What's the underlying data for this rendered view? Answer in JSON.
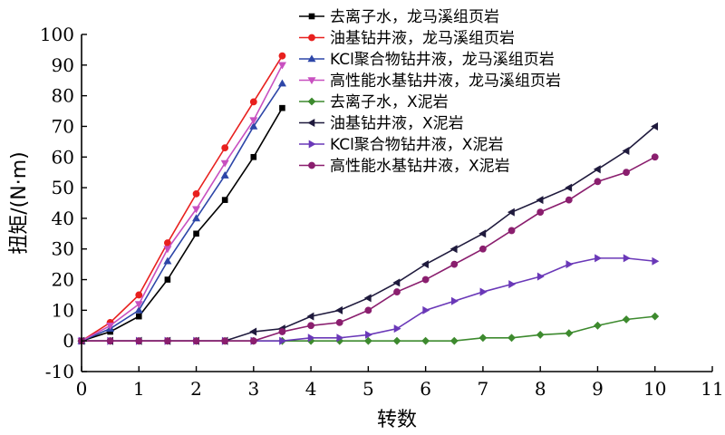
{
  "chart_data": {
    "type": "line",
    "title": "",
    "xlabel": "转数",
    "ylabel": "扭矩/(N·m)",
    "xlim": [
      0,
      11
    ],
    "ylim": [
      -10,
      100
    ],
    "xticks": [
      0,
      1,
      2,
      3,
      4,
      5,
      6,
      7,
      8,
      9,
      10,
      11
    ],
    "yticks": [
      -10,
      0,
      10,
      20,
      30,
      40,
      50,
      60,
      70,
      80,
      90,
      100
    ],
    "grid": false,
    "legend_position": "top-right",
    "series": [
      {
        "name": "去离子水，龙马溪组页岩",
        "color": "#000000",
        "marker": "square",
        "x": [
          0,
          0.5,
          1,
          1.5,
          2,
          2.5,
          3,
          3.5
        ],
        "y": [
          0,
          3,
          8,
          20,
          35,
          46,
          60,
          76
        ]
      },
      {
        "name": "油基钻井液，龙马溪组页岩",
        "color": "#e8201e",
        "marker": "circle",
        "x": [
          0,
          0.5,
          1,
          1.5,
          2,
          2.5,
          3,
          3.5
        ],
        "y": [
          0,
          6,
          15,
          32,
          48,
          63,
          78,
          93
        ]
      },
      {
        "name": "KCl聚合物钻井液，龙马溪组页岩",
        "color": "#2d46a8",
        "marker": "triangle-up",
        "x": [
          0,
          0.5,
          1,
          1.5,
          2,
          2.5,
          3,
          3.5
        ],
        "y": [
          0,
          4,
          10,
          26,
          40,
          54,
          70,
          84
        ]
      },
      {
        "name": "高性能水基钻井液，龙马溪组页岩",
        "color": "#c850c0",
        "marker": "triangle-down",
        "x": [
          0,
          0.5,
          1,
          1.5,
          2,
          2.5,
          3,
          3.5
        ],
        "y": [
          0,
          5,
          12,
          30,
          43,
          58,
          72,
          90
        ]
      },
      {
        "name": "去离子水，X泥岩",
        "color": "#3d8a2e",
        "marker": "diamond",
        "x": [
          0,
          0.5,
          1,
          1.5,
          2,
          2.5,
          3,
          3.5,
          4,
          4.5,
          5,
          5.5,
          6,
          6.5,
          7,
          7.5,
          8,
          8.5,
          9,
          9.5,
          10
        ],
        "y": [
          0,
          0,
          0,
          0,
          0,
          0,
          0,
          0,
          0,
          0,
          0,
          0,
          0,
          0,
          1,
          1,
          2,
          2.5,
          5,
          7,
          8
        ]
      },
      {
        "name": "油基钻井液，X泥岩",
        "color": "#1f1a3d",
        "marker": "triangle-left",
        "x": [
          0,
          0.5,
          1,
          1.5,
          2,
          2.5,
          3,
          3.5,
          4,
          4.5,
          5,
          5.5,
          6,
          6.5,
          7,
          7.5,
          8,
          8.5,
          9,
          9.5,
          10
        ],
        "y": [
          0,
          0,
          0,
          0,
          0,
          0,
          3,
          4,
          8,
          10,
          14,
          19,
          25,
          30,
          35,
          42,
          46,
          50,
          56,
          62,
          70
        ]
      },
      {
        "name": "KCl聚合物钻井液，X泥岩",
        "color": "#6a38b8",
        "marker": "triangle-right",
        "x": [
          0,
          0.5,
          1,
          1.5,
          2,
          2.5,
          3,
          3.5,
          4,
          4.5,
          5,
          5.5,
          6,
          6.5,
          7,
          7.5,
          8,
          8.5,
          9,
          9.5,
          10
        ],
        "y": [
          0,
          0,
          0,
          0,
          0,
          0,
          0,
          0,
          1,
          1,
          2,
          4,
          10,
          13,
          16,
          18.5,
          21,
          25,
          27,
          27,
          26
        ]
      },
      {
        "name": "高性能水基钻井液，X泥岩",
        "color": "#8a1e6e",
        "marker": "circle",
        "x": [
          0,
          0.5,
          1,
          1.5,
          2,
          2.5,
          3,
          3.5,
          4,
          4.5,
          5,
          5.5,
          6,
          6.5,
          7,
          7.5,
          8,
          8.5,
          9,
          9.5,
          10
        ],
        "y": [
          0,
          0,
          0,
          0,
          0,
          0,
          0,
          3,
          5,
          6,
          10,
          16,
          20,
          25,
          30,
          36,
          42,
          46,
          52,
          55,
          60
        ]
      }
    ]
  }
}
